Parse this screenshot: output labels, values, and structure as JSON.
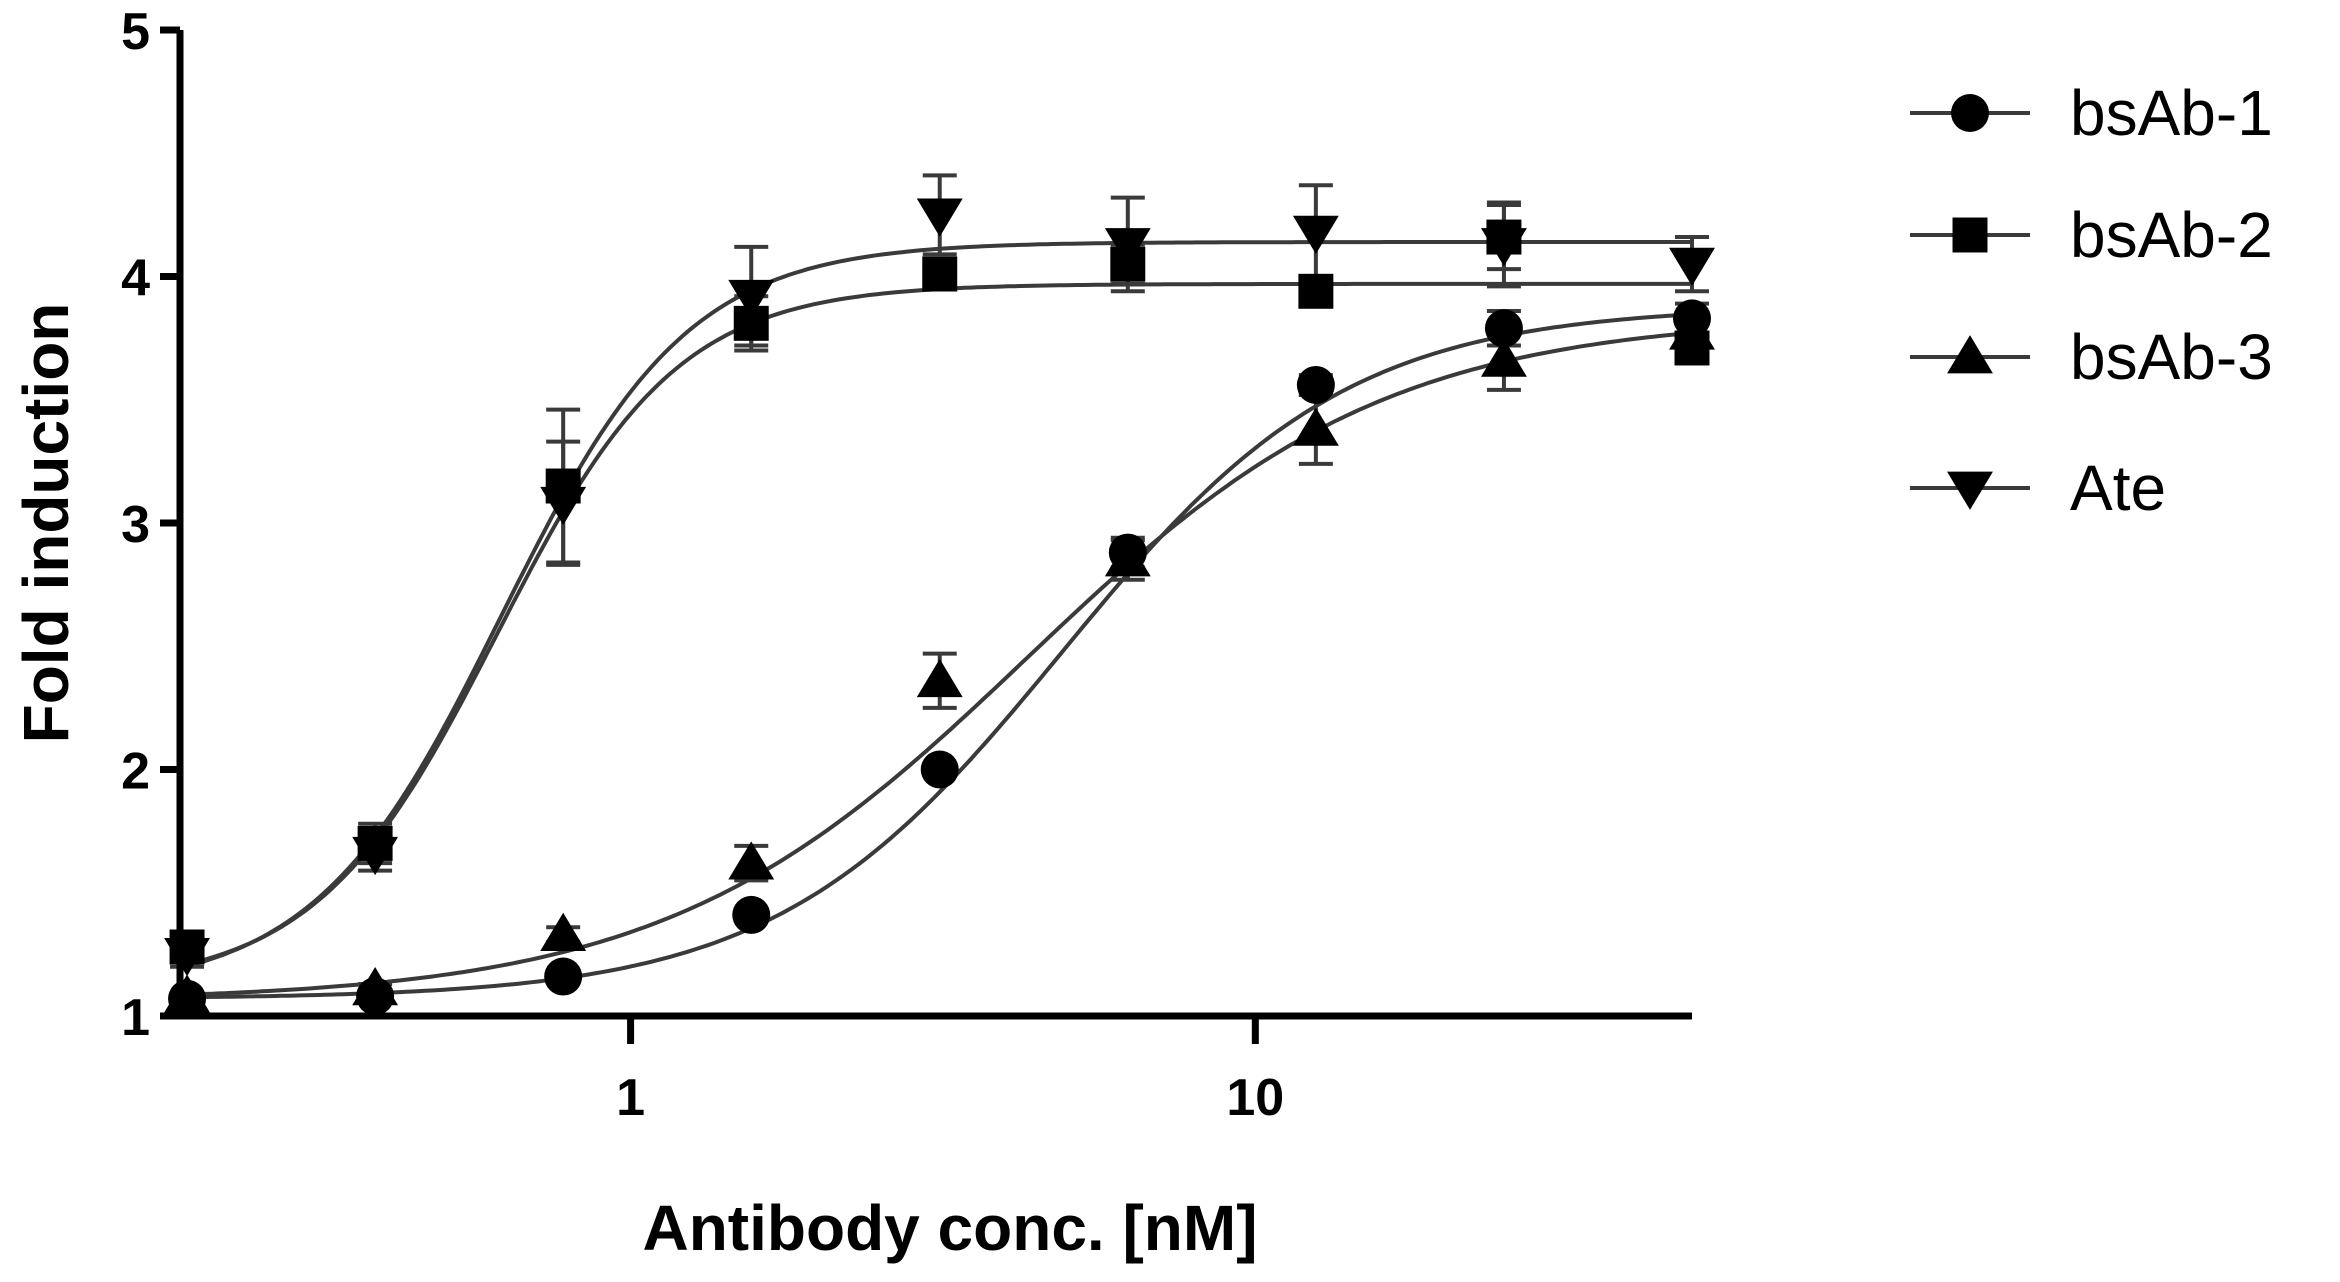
{
  "chart_data": {
    "type": "scatter",
    "title": "",
    "xlabel": "Antibody conc. [nM]",
    "ylabel": "Fold induction",
    "xscale": "log",
    "xlim": [
      0.19,
      50
    ],
    "ylim": [
      1,
      5
    ],
    "x_ticks": [
      1,
      10
    ],
    "x_tick_labels": [
      "1",
      "10"
    ],
    "y_ticks": [
      1,
      2,
      3,
      4,
      5
    ],
    "y_tick_labels": [
      "1",
      "2",
      "3",
      "4",
      "5"
    ],
    "grid": false,
    "legend_position": "top-right",
    "series": [
      {
        "name": "bsAb-1",
        "marker": "circle",
        "x": [
          0.195,
          0.39,
          0.78,
          1.56,
          3.125,
          6.25,
          12.5,
          25,
          50
        ],
        "y": [
          1.07,
          1.08,
          1.16,
          1.41,
          2.0,
          2.88,
          3.56,
          3.79,
          3.83
        ],
        "error": [
          0,
          0,
          0,
          0,
          0,
          0.06,
          0.04,
          0.07,
          0.06
        ],
        "fit": {
          "bottom": 1.07,
          "top": 3.88,
          "ec50": 4.9,
          "hill": 1.9
        }
      },
      {
        "name": "bsAb-2",
        "marker": "square",
        "x": [
          0.195,
          0.39,
          0.78,
          1.56,
          3.125,
          6.25,
          12.5,
          25,
          50
        ],
        "y": [
          1.28,
          1.7,
          3.15,
          3.81,
          4.01,
          4.05,
          3.94,
          4.16,
          3.71
        ],
        "error": [
          0.04,
          0.08,
          0.31,
          0.11,
          0.04,
          0.08,
          0.04,
          0.13,
          0.05
        ],
        "fit": {
          "bottom": 1.12,
          "top": 3.97,
          "ec50": 0.61,
          "hill": 3.0
        }
      },
      {
        "name": "bsAb-3",
        "marker": "triangle-up",
        "x": [
          0.195,
          0.39,
          0.78,
          1.56,
          3.125,
          6.25,
          12.5,
          25,
          50
        ],
        "y": [
          1.08,
          1.11,
          1.33,
          1.62,
          2.36,
          2.85,
          3.38,
          3.66,
          3.77
        ],
        "error": [
          0,
          0.02,
          0.03,
          0.07,
          0.11,
          0.08,
          0.14,
          0.12,
          0.06
        ],
        "fit": {
          "bottom": 1.06,
          "top": 3.84,
          "ec50": 4.3,
          "hill": 1.5
        }
      },
      {
        "name": "Ate",
        "marker": "triangle-down",
        "x": [
          0.195,
          0.39,
          0.78,
          1.56,
          3.125,
          6.25,
          12.5,
          25,
          50
        ],
        "y": [
          1.25,
          1.66,
          3.08,
          3.92,
          4.25,
          4.13,
          4.18,
          4.13,
          4.05
        ],
        "error": [
          0.05,
          0.07,
          0.25,
          0.2,
          0.16,
          0.19,
          0.19,
          0.17,
          0.11
        ],
        "fit": {
          "bottom": 1.1,
          "top": 4.14,
          "ec50": 0.62,
          "hill": 2.9
        }
      }
    ]
  },
  "colors": {
    "line": "#3a3a3a",
    "marker": "#000000",
    "axis": "#000000",
    "background": "#ffffff"
  }
}
